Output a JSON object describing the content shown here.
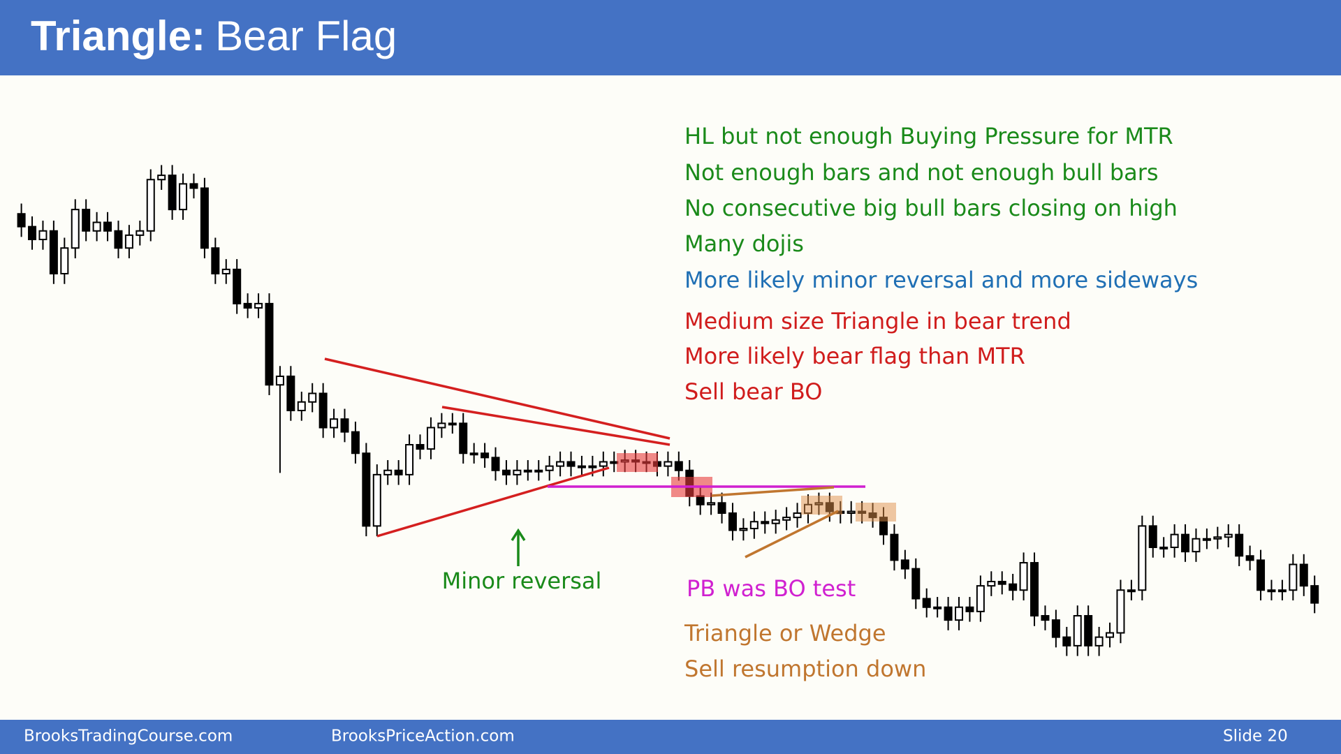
{
  "header": {
    "title_bold": "Triangle:",
    "title": "Bear Flag"
  },
  "notes": [
    {
      "text": "HL but not enough Buying Pressure for MTR",
      "color": "#1a8a1a"
    },
    {
      "text": "Not enough bars and not enough bull bars",
      "color": "#1a8a1a"
    },
    {
      "text": "No consecutive big bull bars closing on high",
      "color": "#1a8a1a"
    },
    {
      "text": "Many dojis",
      "color": "#1a8a1a"
    },
    {
      "text": "More likely minor reversal and more sideways",
      "color": "#1f6fb4"
    },
    {
      "text": "Medium size Triangle in bear trend",
      "color": "#d01c1c"
    },
    {
      "text": "More likely bear flag than MTR",
      "color": "#d01c1c"
    },
    {
      "text": "Sell bear BO",
      "color": "#d01c1c"
    }
  ],
  "annotations": {
    "minor_reversal": "Minor reversal",
    "pb_test": "PB was BO test",
    "triangle_wedge": "Triangle or Wedge",
    "sell_resumption": "Sell resumption down"
  },
  "footer": {
    "left": "BrooksTradingCourse.com",
    "middle": "BrooksPriceAction.com",
    "slide": "Slide  20"
  },
  "chart_data": {
    "type": "candlestick",
    "ylim": [
      80,
      720
    ],
    "open": [
      630,
      615,
      600,
      610,
      560,
      590,
      635,
      610,
      620,
      610,
      590,
      605,
      610,
      670,
      675,
      635,
      665,
      660,
      590,
      560,
      565,
      525,
      520,
      525,
      430,
      440,
      400,
      410,
      420,
      380,
      390,
      375,
      350,
      265,
      325,
      330,
      325,
      360,
      355,
      380,
      385,
      385,
      350,
      350,
      345,
      330,
      325,
      330,
      330,
      330,
      335,
      340,
      335,
      335,
      335,
      340,
      340,
      342,
      340,
      340,
      335,
      340,
      330,
      300,
      290,
      292,
      280,
      260,
      262,
      270,
      268,
      272,
      275,
      280,
      290,
      292,
      282,
      280,
      282,
      280,
      275,
      255,
      225,
      215,
      180,
      170,
      170,
      155,
      170,
      165,
      195,
      200,
      197,
      190,
      222,
      160,
      155,
      135,
      125,
      160,
      125,
      135,
      140,
      190,
      190,
      265,
      240,
      240,
      255,
      235,
      250,
      250,
      252,
      255,
      230,
      225,
      190,
      190,
      190,
      220,
      195
    ],
    "high": [
      642,
      627,
      622,
      622,
      602,
      647,
      647,
      632,
      632,
      622,
      617,
      622,
      682,
      687,
      687,
      677,
      677,
      672,
      602,
      577,
      577,
      537,
      537,
      537,
      452,
      452,
      422,
      432,
      432,
      402,
      402,
      387,
      362,
      337,
      342,
      342,
      372,
      372,
      392,
      397,
      397,
      397,
      362,
      362,
      357,
      342,
      342,
      342,
      342,
      347,
      352,
      352,
      347,
      347,
      352,
      352,
      354,
      354,
      352,
      352,
      352,
      352,
      342,
      312,
      304,
      304,
      292,
      274,
      282,
      282,
      284,
      287,
      292,
      302,
      304,
      304,
      294,
      294,
      294,
      292,
      287,
      267,
      237,
      227,
      192,
      182,
      182,
      182,
      182,
      207,
      212,
      212,
      209,
      234,
      234,
      172,
      167,
      147,
      172,
      172,
      147,
      152,
      202,
      202,
      277,
      277,
      252,
      267,
      267,
      262,
      262,
      264,
      267,
      267,
      242,
      237,
      202,
      202,
      232,
      232,
      207
    ],
    "low": [
      603,
      588,
      588,
      548,
      548,
      578,
      598,
      598,
      598,
      578,
      578,
      593,
      598,
      658,
      623,
      623,
      648,
      578,
      548,
      548,
      513,
      508,
      508,
      418,
      327,
      388,
      388,
      398,
      368,
      368,
      363,
      338,
      253,
      253,
      313,
      313,
      313,
      343,
      343,
      368,
      373,
      338,
      338,
      333,
      318,
      313,
      313,
      318,
      318,
      318,
      323,
      323,
      323,
      323,
      323,
      328,
      328,
      328,
      328,
      323,
      323,
      318,
      288,
      278,
      278,
      268,
      248,
      248,
      250,
      256,
      256,
      260,
      263,
      268,
      278,
      270,
      268,
      268,
      268,
      263,
      243,
      213,
      203,
      168,
      158,
      158,
      143,
      143,
      153,
      153,
      183,
      185,
      178,
      178,
      148,
      143,
      123,
      113,
      113,
      113,
      113,
      123,
      128,
      178,
      178,
      228,
      228,
      228,
      223,
      223,
      238,
      238,
      240,
      218,
      213,
      178,
      178,
      178,
      178,
      183,
      163
    ],
    "close": [
      615,
      600,
      610,
      560,
      590,
      635,
      610,
      620,
      610,
      590,
      605,
      610,
      670,
      675,
      635,
      665,
      660,
      590,
      560,
      565,
      525,
      520,
      525,
      430,
      440,
      400,
      410,
      420,
      380,
      390,
      375,
      350,
      265,
      325,
      330,
      325,
      360,
      355,
      380,
      385,
      385,
      350,
      350,
      345,
      330,
      325,
      330,
      330,
      330,
      335,
      340,
      335,
      335,
      335,
      340,
      340,
      342,
      340,
      340,
      335,
      340,
      330,
      300,
      290,
      292,
      280,
      260,
      262,
      270,
      268,
      272,
      275,
      280,
      290,
      292,
      282,
      280,
      282,
      280,
      275,
      255,
      225,
      215,
      180,
      170,
      170,
      155,
      170,
      165,
      195,
      200,
      197,
      190,
      222,
      160,
      155,
      135,
      125,
      160,
      125,
      135,
      140,
      190,
      190,
      265,
      240,
      240,
      255,
      235,
      250,
      250,
      252,
      255,
      230,
      225,
      190,
      190,
      190,
      220,
      195,
      175
    ]
  }
}
